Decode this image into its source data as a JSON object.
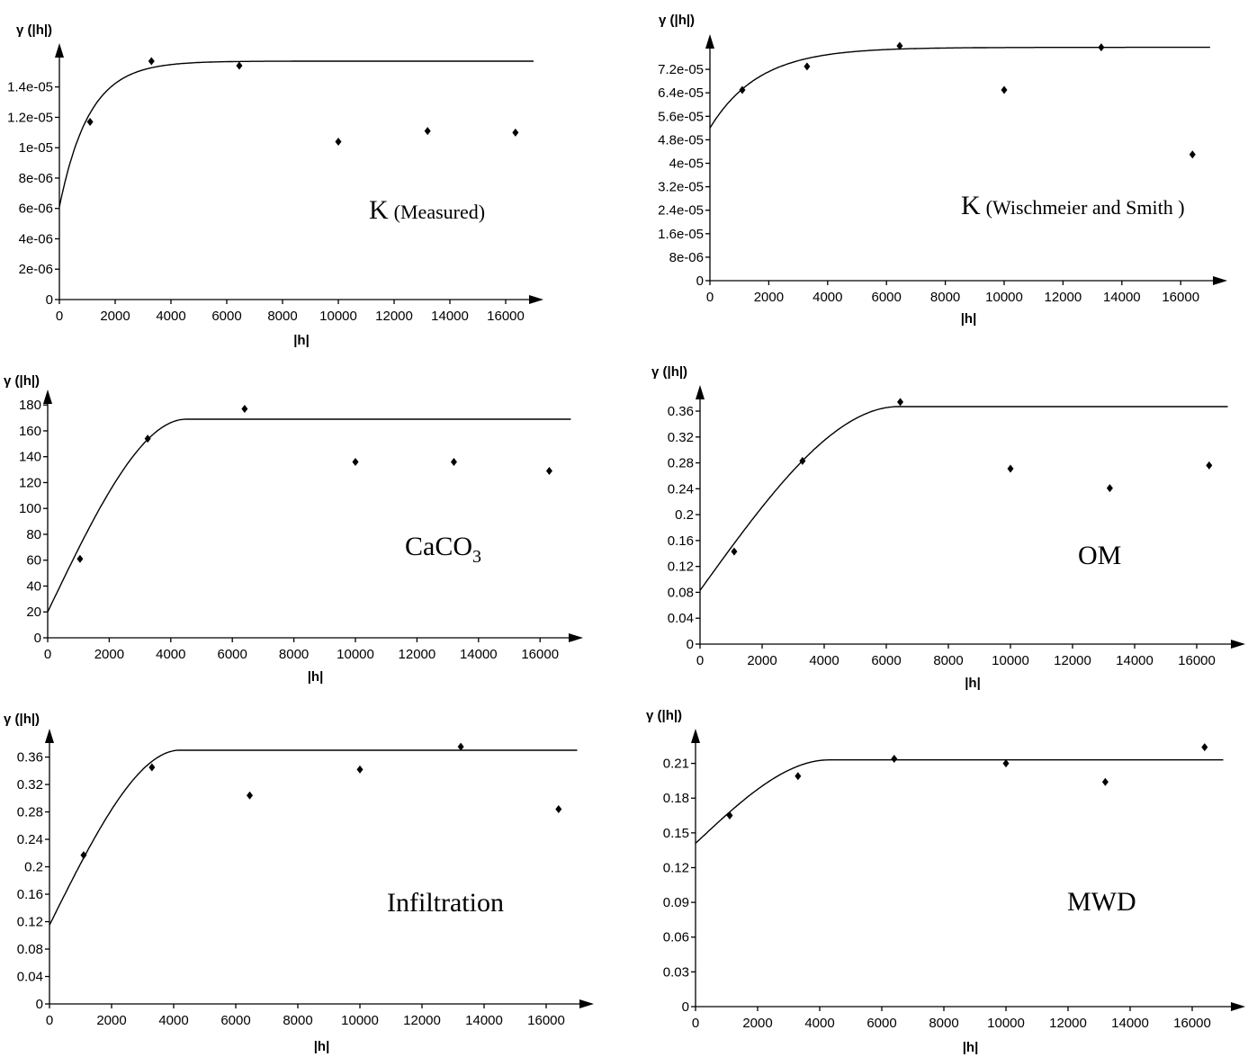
{
  "chart_data": [
    {
      "type": "scatter",
      "title": "K",
      "title_suffix": "(Measured)",
      "ylabel": "γ (|h|)",
      "xlabel": "|h|",
      "xlim": [
        0,
        17000
      ],
      "ylim": [
        0,
        1.6e-05
      ],
      "x_ticks": [
        0,
        2000,
        4000,
        6000,
        8000,
        10000,
        12000,
        14000,
        16000
      ],
      "x_tick_labels": [
        "0",
        "2000",
        "4000",
        "6000",
        "8000",
        "10000",
        "12000",
        "14000",
        "16000"
      ],
      "y_ticks": [
        0,
        2e-06,
        4e-06,
        6e-06,
        8e-06,
        1e-05,
        1.2e-05,
        1.4e-05
      ],
      "y_tick_labels": [
        "0",
        "2e-06",
        "4e-06",
        "6e-06",
        "8e-06",
        "1e-05",
        "1.2e-05",
        "1.4e-05"
      ],
      "grid": false,
      "points": {
        "x": [
          1100,
          3300,
          6450,
          10000,
          13200,
          16350
        ],
        "y": [
          1.17e-05,
          1.57e-05,
          1.54e-05,
          1.04e-05,
          1.11e-05,
          1.1e-05
        ]
      },
      "model": {
        "type": "exponential",
        "nugget": 6.1e-06,
        "sill": 1.57e-05,
        "range": 3200,
        "x_end": 17000
      }
    },
    {
      "type": "scatter",
      "title": "K",
      "title_suffix": "(Wischmeier and Smith )",
      "ylabel": "γ (|h|)",
      "xlabel": "|h|",
      "xlim": [
        0,
        17000
      ],
      "ylim": [
        0,
        8.2e-05
      ],
      "x_ticks": [
        0,
        2000,
        4000,
        6000,
        8000,
        10000,
        12000,
        14000,
        16000
      ],
      "x_tick_labels": [
        "0",
        "2000",
        "4000",
        "6000",
        "8000",
        "10000",
        "12000",
        "14000",
        "16000"
      ],
      "y_ticks": [
        0,
        8e-06,
        1.6e-05,
        2.4e-05,
        3.2e-05,
        4e-05,
        4.8e-05,
        5.6e-05,
        6.4e-05,
        7.2e-05
      ],
      "y_tick_labels": [
        "0",
        "8e-06",
        "1.6e-05",
        "2.4e-05",
        "3.2e-05",
        "4e-05",
        "4.8e-05",
        "5.6e-05",
        "6.4e-05",
        "7.2e-05"
      ],
      "grid": false,
      "points": {
        "x": [
          1100,
          3300,
          6450,
          10000,
          13300,
          16400
        ],
        "y": [
          6.5e-05,
          7.3e-05,
          8e-05,
          6.5e-05,
          7.95e-05,
          4.3e-05
        ]
      },
      "model": {
        "type": "exponential",
        "nugget": 5.2e-05,
        "sill": 7.95e-05,
        "range": 5000,
        "x_end": 17000
      }
    },
    {
      "type": "scatter",
      "title": "CaCO",
      "title_subscript": "3",
      "ylabel": "γ (|h|)",
      "xlabel": "|h|",
      "xlim": [
        0,
        17000
      ],
      "ylim": [
        0,
        185
      ],
      "x_ticks": [
        0,
        2000,
        4000,
        6000,
        8000,
        10000,
        12000,
        14000,
        16000
      ],
      "x_tick_labels": [
        "0",
        "2000",
        "4000",
        "6000",
        "8000",
        "10000",
        "12000",
        "14000",
        "16000"
      ],
      "y_ticks": [
        0,
        20,
        40,
        60,
        80,
        100,
        120,
        140,
        160,
        180
      ],
      "y_tick_labels": [
        "0",
        "20",
        "40",
        "60",
        "80",
        "100",
        "120",
        "140",
        "160",
        "180"
      ],
      "grid": false,
      "points": {
        "x": [
          1050,
          3250,
          6400,
          10000,
          13200,
          16300
        ],
        "y": [
          61,
          154,
          177,
          136,
          136,
          129
        ]
      },
      "model": {
        "type": "spherical",
        "nugget": 20,
        "sill": 169,
        "range": 4500,
        "x_end": 17000
      }
    },
    {
      "type": "scatter",
      "title": "OM",
      "ylabel": "γ (|h|)",
      "xlabel": "|h|",
      "xlim": [
        0,
        17000
      ],
      "ylim": [
        0,
        0.39
      ],
      "x_ticks": [
        0,
        2000,
        4000,
        6000,
        8000,
        10000,
        12000,
        14000,
        16000
      ],
      "x_tick_labels": [
        "0",
        "2000",
        "4000",
        "6000",
        "8000",
        "10000",
        "12000",
        "14000",
        "16000"
      ],
      "y_ticks": [
        0,
        0.04,
        0.08,
        0.12,
        0.16,
        0.2,
        0.24,
        0.28,
        0.32,
        0.36
      ],
      "y_tick_labels": [
        "0",
        "0.04",
        "0.08",
        "0.12",
        "0.16",
        "0.2",
        "0.24",
        "0.28",
        "0.32",
        "0.36"
      ],
      "grid": false,
      "points": {
        "x": [
          1100,
          3300,
          6450,
          10000,
          13200,
          16400
        ],
        "y": [
          0.143,
          0.283,
          0.374,
          0.271,
          0.241,
          0.276
        ]
      },
      "model": {
        "type": "spherical",
        "nugget": 0.083,
        "sill": 0.367,
        "range": 6400,
        "x_end": 17000
      }
    },
    {
      "type": "scatter",
      "title": "Infiltration",
      "ylabel": "γ (|h|)",
      "xlabel": "|h|",
      "xlim": [
        0,
        17000
      ],
      "ylim": [
        0,
        0.39
      ],
      "x_ticks": [
        0,
        2000,
        4000,
        6000,
        8000,
        10000,
        12000,
        14000,
        16000
      ],
      "x_tick_labels": [
        "0",
        "2000",
        "4000",
        "6000",
        "8000",
        "10000",
        "12000",
        "14000",
        "16000"
      ],
      "y_ticks": [
        0,
        0.04,
        0.08,
        0.12,
        0.16,
        0.2,
        0.24,
        0.28,
        0.32,
        0.36
      ],
      "y_tick_labels": [
        "0",
        "0.04",
        "0.08",
        "0.12",
        "0.16",
        "0.2",
        "0.24",
        "0.28",
        "0.32",
        "0.36"
      ],
      "grid": false,
      "points": {
        "x": [
          1100,
          3300,
          6450,
          10000,
          13250,
          16400
        ],
        "y": [
          0.217,
          0.345,
          0.304,
          0.342,
          0.375,
          0.284
        ]
      },
      "model": {
        "type": "spherical",
        "nugget": 0.115,
        "sill": 0.37,
        "range": 4200,
        "x_end": 17000
      }
    },
    {
      "type": "scatter",
      "title": "MWD",
      "ylabel": "γ (|h|)",
      "xlabel": "|h|",
      "xlim": [
        0,
        17000
      ],
      "ylim": [
        0,
        0.231
      ],
      "x_ticks": [
        0,
        2000,
        4000,
        6000,
        8000,
        10000,
        12000,
        14000,
        16000
      ],
      "x_tick_labels": [
        "0",
        "2000",
        "4000",
        "6000",
        "8000",
        "10000",
        "12000",
        "14000",
        "16000"
      ],
      "y_ticks": [
        0,
        0.03,
        0.06,
        0.09,
        0.12,
        0.15,
        0.18,
        0.21
      ],
      "y_tick_labels": [
        "0",
        "0.03",
        "0.06",
        "0.09",
        "0.12",
        "0.15",
        "0.18",
        "0.21"
      ],
      "grid": false,
      "points": {
        "x": [
          1100,
          3300,
          6400,
          10000,
          13200,
          16400
        ],
        "y": [
          0.165,
          0.199,
          0.214,
          0.21,
          0.194,
          0.224
        ]
      },
      "model": {
        "type": "spherical",
        "nugget": 0.141,
        "sill": 0.213,
        "range": 4300,
        "x_end": 17000
      }
    }
  ]
}
